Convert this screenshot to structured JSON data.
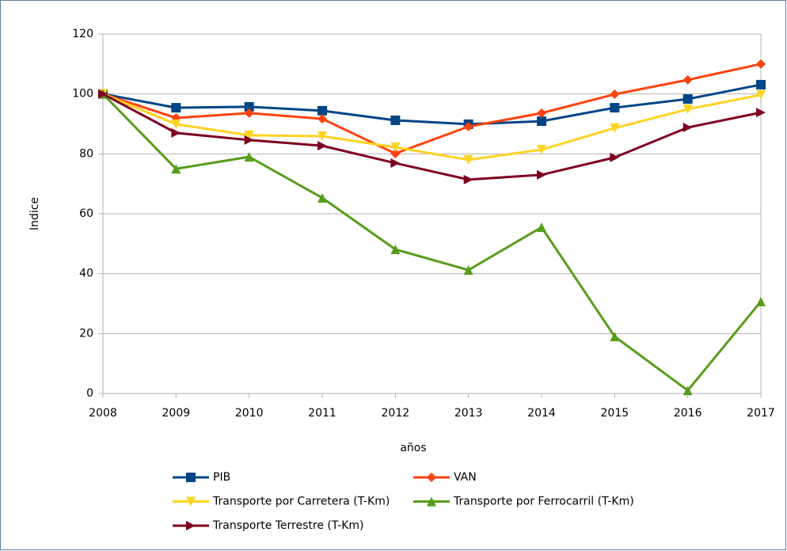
{
  "chart_data": {
    "type": "line",
    "x_label": "años",
    "y_label": "Indice",
    "categories": [
      "2008",
      "2009",
      "2010",
      "2011",
      "2012",
      "2013",
      "2014",
      "2015",
      "2016",
      "2017"
    ],
    "series": [
      {
        "name": "PIB",
        "color": "#004586",
        "marker": "square",
        "values": [
          100,
          95.4,
          95.7,
          94.4,
          91.2,
          89.9,
          90.9,
          95.4,
          98.3,
          103.1
        ]
      },
      {
        "name": "VAN",
        "color": "#ff420e",
        "marker": "diamond",
        "values": [
          100,
          92,
          93.6,
          91.7,
          80.1,
          89.1,
          93.6,
          99.9,
          104.7,
          110
        ]
      },
      {
        "name": "Transporte por Carretera (T-Km)",
        "color": "#ffd320",
        "marker": "triangle-down",
        "values": [
          100,
          89.9,
          86.2,
          85.9,
          82.2,
          78,
          81.4,
          88.6,
          94.9,
          99.7
        ]
      },
      {
        "name": "Transporte por Ferrocarril (T-Km)",
        "color": "#579d1c",
        "marker": "triangle-up",
        "values": [
          100,
          75,
          79,
          65.3,
          48.1,
          41.2,
          55.5,
          19,
          1,
          30.7
        ]
      },
      {
        "name": "Transporte Terrestre (T-Km)",
        "color": "#7e0021",
        "marker": "triangle-right",
        "values": [
          100,
          87,
          84.6,
          82.7,
          76.9,
          71.4,
          73,
          78.8,
          88.8,
          93.8
        ]
      }
    ],
    "ylim": [
      0,
      120
    ],
    "yticks": [
      0,
      20,
      40,
      60,
      80,
      100,
      120
    ],
    "grid": true,
    "legend": "bottom"
  }
}
